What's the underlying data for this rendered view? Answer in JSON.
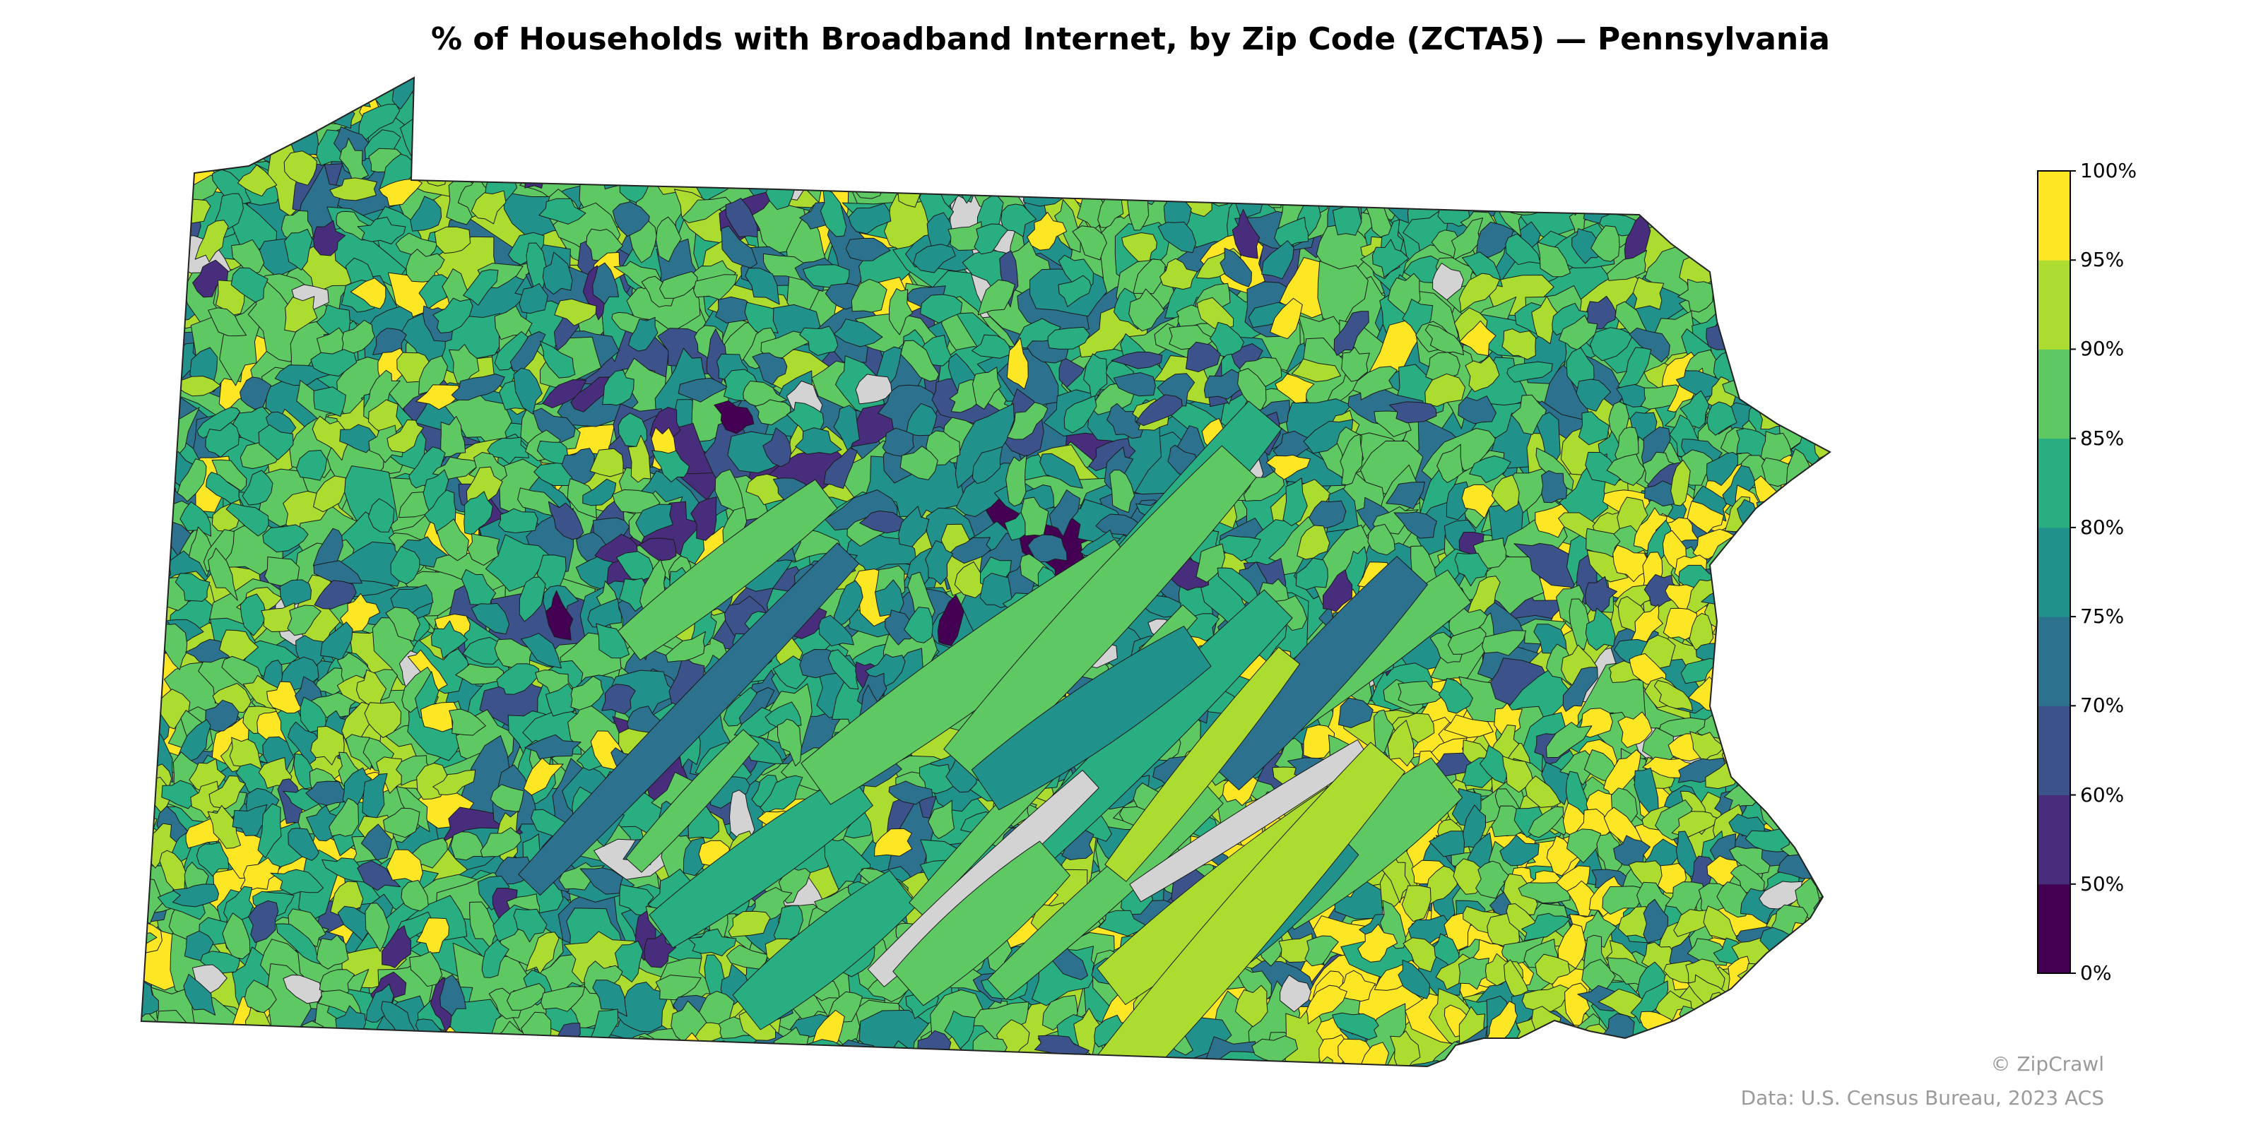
{
  "title": "% of Households with Broadband Internet, by Zip Code (ZCTA5) — Pennsylvania",
  "colorbar": {
    "ticks": [
      "0%",
      "50%",
      "60%",
      "70%",
      "75%",
      "80%",
      "85%",
      "90%",
      "95%",
      "100%"
    ],
    "bins": [
      {
        "range": "0%-50%",
        "color": "#440154"
      },
      {
        "range": "50%-60%",
        "color": "#472d7b"
      },
      {
        "range": "60%-70%",
        "color": "#3b528b"
      },
      {
        "range": "70%-75%",
        "color": "#2c728e"
      },
      {
        "range": "75%-80%",
        "color": "#21918c"
      },
      {
        "range": "80%-85%",
        "color": "#28ae80"
      },
      {
        "range": "85%-90%",
        "color": "#5ec962"
      },
      {
        "range": "90%-95%",
        "color": "#addc30"
      },
      {
        "range": "95%-100%",
        "color": "#fde725"
      }
    ]
  },
  "no_data_color": "#d3d3d3",
  "credits": {
    "copyright": "© ZipCrawl",
    "source": "Data: U.S. Census Bureau, 2023 ACS"
  }
}
